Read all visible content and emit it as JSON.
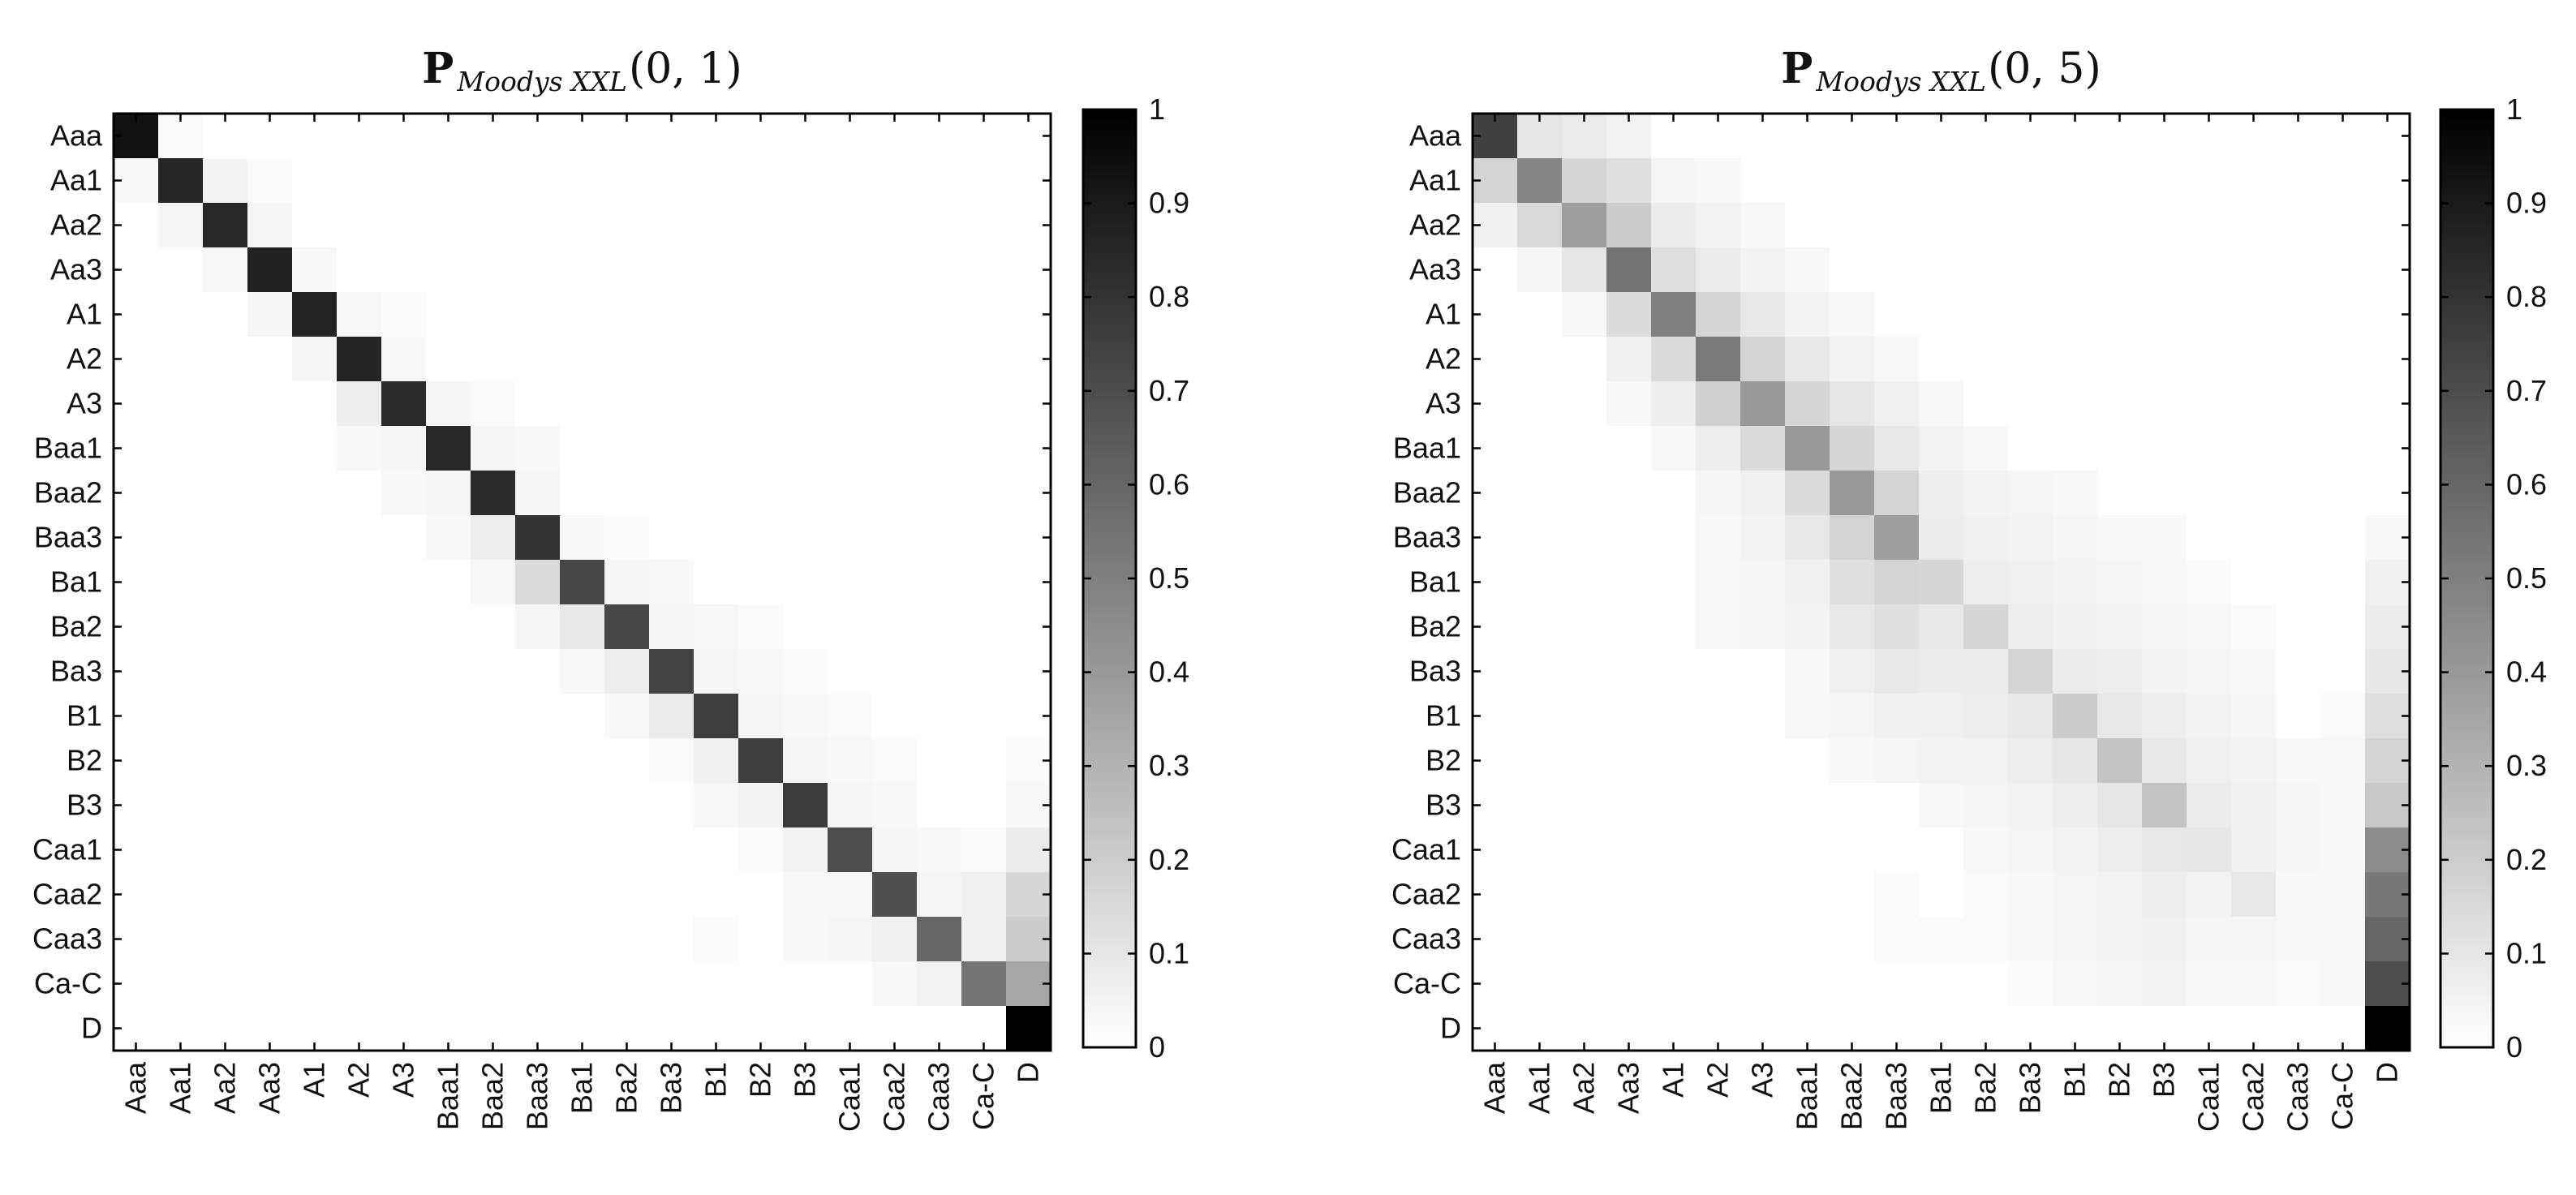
{
  "labels": [
    "Aaa",
    "Aa1",
    "Aa2",
    "Aa3",
    "A1",
    "A2",
    "A3",
    "Baa1",
    "Baa2",
    "Baa3",
    "Ba1",
    "Ba2",
    "Ba3",
    "B1",
    "B2",
    "B3",
    "Caa1",
    "Caa2",
    "Caa3",
    "Ca-C",
    "D"
  ],
  "colorbar_ticks": [
    "0",
    "0.1",
    "0.2",
    "0.3",
    "0.4",
    "0.5",
    "0.6",
    "0.7",
    "0.8",
    "0.9",
    "1"
  ],
  "colors": {
    "low": "#ffffff",
    "high": "#000000",
    "frame": "#000000"
  },
  "chart_data": [
    {
      "type": "heatmap",
      "title": {
        "bold": "P",
        "sub": "Moodys XXL",
        "args": "(0, 1)"
      },
      "colormap": "gray-reversed",
      "clim": [
        0,
        1
      ],
      "matrix": [
        [
          0.93,
          0.02,
          0,
          0,
          0,
          0,
          0,
          0,
          0,
          0,
          0,
          0,
          0,
          0,
          0,
          0,
          0,
          0,
          0,
          0,
          0
        ],
        [
          0.03,
          0.85,
          0.05,
          0.02,
          0,
          0,
          0,
          0,
          0,
          0,
          0,
          0,
          0,
          0,
          0,
          0,
          0,
          0,
          0,
          0,
          0
        ],
        [
          0,
          0.04,
          0.84,
          0.04,
          0,
          0,
          0,
          0,
          0,
          0,
          0,
          0,
          0,
          0,
          0,
          0,
          0,
          0,
          0,
          0,
          0
        ],
        [
          0,
          0,
          0.03,
          0.87,
          0.03,
          0,
          0,
          0,
          0,
          0,
          0,
          0,
          0,
          0,
          0,
          0,
          0,
          0,
          0,
          0,
          0
        ],
        [
          0,
          0,
          0,
          0.04,
          0.86,
          0.03,
          0.02,
          0,
          0,
          0,
          0,
          0,
          0,
          0,
          0,
          0,
          0,
          0,
          0,
          0,
          0
        ],
        [
          0,
          0,
          0,
          0,
          0.04,
          0.86,
          0.03,
          0,
          0,
          0,
          0,
          0,
          0,
          0,
          0,
          0,
          0,
          0,
          0,
          0,
          0
        ],
        [
          0,
          0,
          0,
          0,
          0,
          0.07,
          0.83,
          0.04,
          0.02,
          0,
          0,
          0,
          0,
          0,
          0,
          0,
          0,
          0,
          0,
          0,
          0
        ],
        [
          0,
          0,
          0,
          0,
          0,
          0.03,
          0.04,
          0.84,
          0.04,
          0.03,
          0,
          0,
          0,
          0,
          0,
          0,
          0,
          0,
          0,
          0,
          0
        ],
        [
          0,
          0,
          0,
          0,
          0,
          0,
          0.03,
          0.04,
          0.83,
          0.04,
          0,
          0,
          0,
          0,
          0,
          0,
          0,
          0,
          0,
          0,
          0
        ],
        [
          0,
          0,
          0,
          0,
          0,
          0,
          0,
          0.03,
          0.07,
          0.8,
          0.03,
          0.02,
          0,
          0,
          0,
          0,
          0,
          0,
          0,
          0,
          0
        ],
        [
          0,
          0,
          0,
          0,
          0,
          0,
          0,
          0,
          0.03,
          0.14,
          0.72,
          0.04,
          0.03,
          0,
          0,
          0,
          0,
          0,
          0,
          0,
          0
        ],
        [
          0,
          0,
          0,
          0,
          0,
          0,
          0,
          0,
          0,
          0.04,
          0.09,
          0.72,
          0.04,
          0.03,
          0.02,
          0,
          0,
          0,
          0,
          0,
          0
        ],
        [
          0,
          0,
          0,
          0,
          0,
          0,
          0,
          0,
          0,
          0,
          0.03,
          0.07,
          0.74,
          0.04,
          0.03,
          0.02,
          0,
          0,
          0,
          0,
          0
        ],
        [
          0,
          0,
          0,
          0,
          0,
          0,
          0,
          0,
          0,
          0,
          0,
          0.03,
          0.08,
          0.76,
          0.04,
          0.03,
          0.02,
          0,
          0,
          0,
          0
        ],
        [
          0,
          0,
          0,
          0,
          0,
          0,
          0,
          0,
          0,
          0,
          0,
          0,
          0.02,
          0.06,
          0.76,
          0.04,
          0.03,
          0.02,
          0,
          0,
          0.02
        ],
        [
          0,
          0,
          0,
          0,
          0,
          0,
          0,
          0,
          0,
          0,
          0,
          0,
          0,
          0.03,
          0.05,
          0.77,
          0.04,
          0.03,
          0,
          0,
          0.03
        ],
        [
          0,
          0,
          0,
          0,
          0,
          0,
          0,
          0,
          0,
          0,
          0,
          0,
          0,
          0,
          0.02,
          0.05,
          0.7,
          0.04,
          0.03,
          0.02,
          0.08
        ],
        [
          0,
          0,
          0,
          0,
          0,
          0,
          0,
          0,
          0,
          0,
          0,
          0,
          0,
          0,
          0,
          0.03,
          0.03,
          0.69,
          0.04,
          0.06,
          0.16
        ],
        [
          0,
          0,
          0,
          0,
          0,
          0,
          0,
          0,
          0,
          0,
          0,
          0,
          0,
          0.02,
          0,
          0.03,
          0.04,
          0.06,
          0.6,
          0.06,
          0.2
        ],
        [
          0,
          0,
          0,
          0,
          0,
          0,
          0,
          0,
          0,
          0,
          0,
          0,
          0,
          0,
          0,
          0,
          0,
          0.03,
          0.05,
          0.55,
          0.35
        ],
        [
          0,
          0,
          0,
          0,
          0,
          0,
          0,
          0,
          0,
          0,
          0,
          0,
          0,
          0,
          0,
          0,
          0,
          0,
          0,
          0,
          1
        ]
      ]
    },
    {
      "type": "heatmap",
      "title": {
        "bold": "P",
        "sub": "Moodys XXL",
        "args": "(0, 5)"
      },
      "colormap": "gray-reversed",
      "clim": [
        0,
        1
      ],
      "matrix": [
        [
          0.75,
          0.1,
          0.08,
          0.05,
          0,
          0,
          0,
          0,
          0,
          0,
          0,
          0,
          0,
          0,
          0,
          0,
          0,
          0,
          0,
          0,
          0
        ],
        [
          0.17,
          0.48,
          0.16,
          0.12,
          0.04,
          0.03,
          0,
          0,
          0,
          0,
          0,
          0,
          0,
          0,
          0,
          0,
          0,
          0,
          0,
          0,
          0
        ],
        [
          0.06,
          0.15,
          0.38,
          0.2,
          0.08,
          0.05,
          0.03,
          0,
          0,
          0,
          0,
          0,
          0,
          0,
          0,
          0,
          0,
          0,
          0,
          0,
          0
        ],
        [
          0,
          0.04,
          0.1,
          0.55,
          0.13,
          0.08,
          0.05,
          0.03,
          0,
          0,
          0,
          0,
          0,
          0,
          0,
          0,
          0,
          0,
          0,
          0,
          0
        ],
        [
          0,
          0,
          0.03,
          0.14,
          0.5,
          0.17,
          0.09,
          0.05,
          0.03,
          0,
          0,
          0,
          0,
          0,
          0,
          0,
          0,
          0,
          0,
          0,
          0
        ],
        [
          0,
          0,
          0,
          0.06,
          0.14,
          0.52,
          0.17,
          0.09,
          0.05,
          0.03,
          0,
          0,
          0,
          0,
          0,
          0,
          0,
          0,
          0,
          0,
          0
        ],
        [
          0,
          0,
          0,
          0.03,
          0.07,
          0.18,
          0.4,
          0.16,
          0.1,
          0.06,
          0.03,
          0,
          0,
          0,
          0,
          0,
          0,
          0,
          0,
          0,
          0
        ],
        [
          0,
          0,
          0,
          0,
          0.03,
          0.07,
          0.14,
          0.4,
          0.16,
          0.09,
          0.05,
          0.03,
          0,
          0,
          0,
          0,
          0,
          0,
          0,
          0,
          0
        ],
        [
          0,
          0,
          0,
          0,
          0,
          0.04,
          0.06,
          0.14,
          0.4,
          0.17,
          0.07,
          0.05,
          0.04,
          0.03,
          0,
          0,
          0,
          0,
          0,
          0,
          0
        ],
        [
          0,
          0,
          0,
          0,
          0,
          0.03,
          0.05,
          0.09,
          0.17,
          0.38,
          0.08,
          0.06,
          0.05,
          0.04,
          0.03,
          0.03,
          0,
          0,
          0,
          0,
          0.03
        ],
        [
          0,
          0,
          0,
          0,
          0,
          0.03,
          0.04,
          0.06,
          0.12,
          0.17,
          0.16,
          0.07,
          0.06,
          0.05,
          0.04,
          0.03,
          0.02,
          0,
          0,
          0,
          0.06
        ],
        [
          0,
          0,
          0,
          0,
          0,
          0.03,
          0.04,
          0.05,
          0.09,
          0.12,
          0.09,
          0.16,
          0.07,
          0.06,
          0.05,
          0.04,
          0.03,
          0.02,
          0,
          0,
          0.08
        ],
        [
          0,
          0,
          0,
          0,
          0,
          0,
          0,
          0.03,
          0.06,
          0.09,
          0.08,
          0.08,
          0.17,
          0.08,
          0.07,
          0.05,
          0.04,
          0.03,
          0,
          0,
          0.1
        ],
        [
          0,
          0,
          0,
          0,
          0,
          0,
          0,
          0.03,
          0.04,
          0.06,
          0.06,
          0.07,
          0.09,
          0.2,
          0.09,
          0.07,
          0.05,
          0.04,
          0,
          0.02,
          0.13
        ],
        [
          0,
          0,
          0,
          0,
          0,
          0,
          0,
          0,
          0.03,
          0.04,
          0.05,
          0.05,
          0.07,
          0.1,
          0.23,
          0.09,
          0.06,
          0.05,
          0.03,
          0.03,
          0.17
        ],
        [
          0,
          0,
          0,
          0,
          0,
          0,
          0,
          0,
          0,
          0,
          0.03,
          0.04,
          0.05,
          0.07,
          0.1,
          0.24,
          0.08,
          0.06,
          0.04,
          0.03,
          0.22
        ],
        [
          0,
          0,
          0,
          0,
          0,
          0,
          0,
          0,
          0,
          0,
          0,
          0.03,
          0.04,
          0.05,
          0.07,
          0.09,
          0.1,
          0.06,
          0.04,
          0.03,
          0.45
        ],
        [
          0,
          0,
          0,
          0,
          0,
          0,
          0,
          0,
          0,
          0.02,
          0,
          0.02,
          0.03,
          0.04,
          0.05,
          0.07,
          0.05,
          0.09,
          0.03,
          0.03,
          0.53
        ],
        [
          0,
          0,
          0,
          0,
          0,
          0,
          0,
          0,
          0,
          0.02,
          0.02,
          0.02,
          0.03,
          0.04,
          0.05,
          0.06,
          0.04,
          0.04,
          0.03,
          0.03,
          0.6
        ],
        [
          0,
          0,
          0,
          0,
          0,
          0,
          0,
          0,
          0,
          0,
          0,
          0,
          0.02,
          0.03,
          0.04,
          0.05,
          0.03,
          0.03,
          0.02,
          0.03,
          0.7
        ],
        [
          0,
          0,
          0,
          0,
          0,
          0,
          0,
          0,
          0,
          0,
          0,
          0,
          0,
          0,
          0,
          0,
          0,
          0,
          0,
          0,
          1
        ]
      ]
    }
  ]
}
